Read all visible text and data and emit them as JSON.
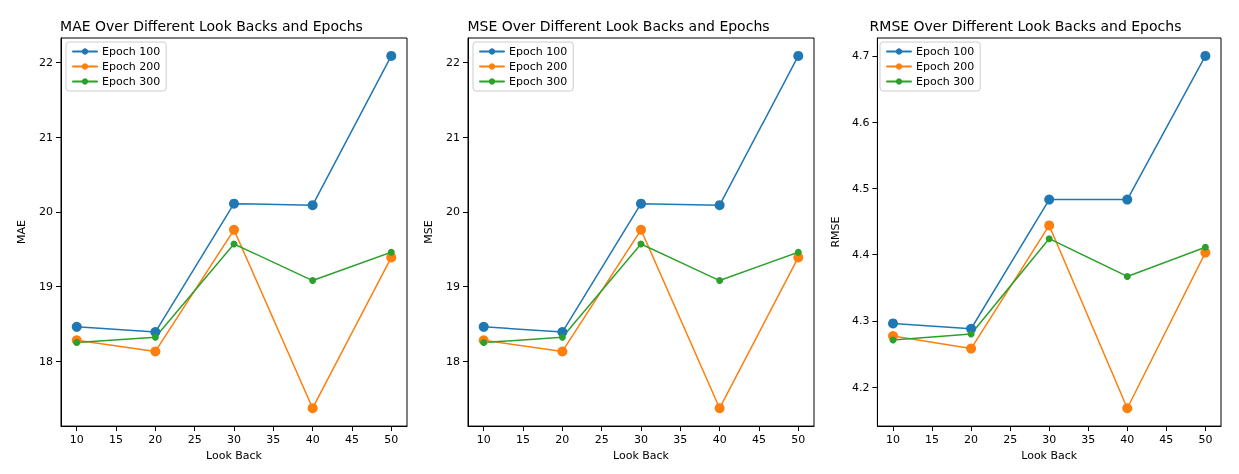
{
  "chart_data": [
    {
      "type": "line",
      "title": "MAE Over Different Look Backs and Epochs",
      "xlabel": "Look Back",
      "ylabel": "MAE",
      "x": [
        10,
        20,
        30,
        40,
        50
      ],
      "xlim": [
        8,
        52
      ],
      "xticks": [
        10,
        15,
        20,
        25,
        30,
        35,
        40,
        45,
        50
      ],
      "ylim": [
        17.13,
        22.33
      ],
      "yticks": [
        18,
        19,
        20,
        21,
        22
      ],
      "grid": false,
      "legend": "top left",
      "marker": "circle",
      "line_style": "solid",
      "series": [
        {
          "name": "Epoch 100",
          "color": "#1f77b4",
          "values": [
            18.46,
            18.39,
            20.11,
            20.09,
            22.09
          ]
        },
        {
          "name": "Epoch 200",
          "color": "#ff7f0e",
          "values": [
            18.28,
            18.13,
            19.76,
            17.37,
            19.39
          ]
        },
        {
          "name": "Epoch 300",
          "color": "#2ca02c",
          "values": [
            18.25,
            18.32,
            19.57,
            19.08,
            19.46
          ]
        }
      ]
    },
    {
      "type": "line",
      "title": "MSE Over Different Look Backs and Epochs",
      "xlabel": "Look Back",
      "ylabel": "MSE",
      "x": [
        10,
        20,
        30,
        40,
        50
      ],
      "xlim": [
        8,
        52
      ],
      "xticks": [
        10,
        15,
        20,
        25,
        30,
        35,
        40,
        45,
        50
      ],
      "ylim": [
        17.13,
        22.33
      ],
      "yticks": [
        18,
        19,
        20,
        21,
        22
      ],
      "grid": false,
      "legend": "top left",
      "marker": "circle",
      "line_style": "solid",
      "series": [
        {
          "name": "Epoch 100",
          "color": "#1f77b4",
          "values": [
            18.46,
            18.39,
            20.11,
            20.09,
            22.09
          ]
        },
        {
          "name": "Epoch 200",
          "color": "#ff7f0e",
          "values": [
            18.28,
            18.13,
            19.76,
            17.37,
            19.39
          ]
        },
        {
          "name": "Epoch 300",
          "color": "#2ca02c",
          "values": [
            18.25,
            18.32,
            19.57,
            19.08,
            19.46
          ]
        }
      ]
    },
    {
      "type": "line",
      "title": "RMSE Over Different Look Backs and Epochs",
      "xlabel": "Look Back",
      "ylabel": "RMSE",
      "x": [
        10,
        20,
        30,
        40,
        50
      ],
      "xlim": [
        8,
        52
      ],
      "xticks": [
        10,
        15,
        20,
        25,
        30,
        35,
        40,
        45,
        50
      ],
      "ylim": [
        4.141,
        4.727
      ],
      "yticks": [
        4.2,
        4.3,
        4.4,
        4.5,
        4.6,
        4.7
      ],
      "grid": false,
      "legend": "top left",
      "marker": "circle",
      "line_style": "solid",
      "series": [
        {
          "name": "Epoch 100",
          "color": "#1f77b4",
          "values": [
            4.296,
            4.288,
            4.483,
            4.483,
            4.7
          ]
        },
        {
          "name": "Epoch 200",
          "color": "#ff7f0e",
          "values": [
            4.277,
            4.258,
            4.444,
            4.168,
            4.403
          ]
        },
        {
          "name": "Epoch 300",
          "color": "#2ca02c",
          "values": [
            4.271,
            4.28,
            4.424,
            4.367,
            4.411
          ]
        }
      ]
    }
  ]
}
